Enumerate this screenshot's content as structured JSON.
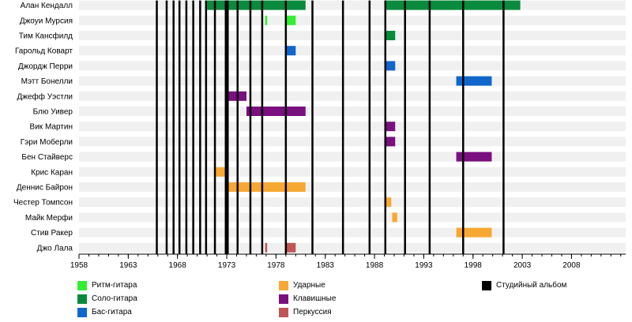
{
  "chart_data": {
    "type": "timeline",
    "x_axis": {
      "min": 1958,
      "max": 2013.5,
      "ticks": [
        1958,
        1963,
        1968,
        1973,
        1978,
        1983,
        1988,
        1993,
        1998,
        2003,
        2008
      ]
    },
    "colors": {
      "rhythm": "#33ee33",
      "lead": "#0a8a3c",
      "bass": "#1166cc",
      "drums": "#f7a833",
      "keys": "#7a0f80",
      "perc": "#bf5555",
      "album": "#000000"
    },
    "members": [
      {
        "name": "Алан Кендалл",
        "periods": [
          {
            "start": 1971.0,
            "end": 1981.0,
            "role": "lead"
          },
          {
            "start": 1989.0,
            "end": 2002.8,
            "role": "lead"
          }
        ]
      },
      {
        "name": "Джоуи Мурсия",
        "periods": [
          {
            "start": 1976.9,
            "end": 1977.1,
            "role": "rhythm"
          },
          {
            "start": 1979.0,
            "end": 1980.0,
            "role": "rhythm"
          }
        ]
      },
      {
        "name": "Тим Кансфилд",
        "periods": [
          {
            "start": 1989.0,
            "end": 1990.1,
            "role": "lead"
          }
        ]
      },
      {
        "name": "Гарольд Коварт",
        "periods": [
          {
            "start": 1979.0,
            "end": 1980.0,
            "role": "bass"
          }
        ]
      },
      {
        "name": "Джордж Перри",
        "periods": [
          {
            "start": 1989.0,
            "end": 1990.1,
            "role": "bass"
          }
        ]
      },
      {
        "name": "Мэтт Бонелли",
        "periods": [
          {
            "start": 1996.3,
            "end": 1999.9,
            "role": "bass"
          }
        ]
      },
      {
        "name": "Джефф Уэстли",
        "periods": [
          {
            "start": 1973.0,
            "end": 1975.0,
            "role": "keys"
          }
        ]
      },
      {
        "name": "Блю Уивер",
        "periods": [
          {
            "start": 1975.0,
            "end": 1981.0,
            "role": "keys"
          }
        ]
      },
      {
        "name": "Вик Мартин",
        "periods": [
          {
            "start": 1989.0,
            "end": 1990.1,
            "role": "keys"
          }
        ]
      },
      {
        "name": "Гэри Моберли",
        "periods": [
          {
            "start": 1989.0,
            "end": 1990.1,
            "role": "keys"
          }
        ]
      },
      {
        "name": "Бен Стайверс",
        "periods": [
          {
            "start": 1996.3,
            "end": 1999.9,
            "role": "keys"
          }
        ]
      },
      {
        "name": "Крис Каран",
        "periods": [
          {
            "start": 1971.9,
            "end": 1973.0,
            "role": "drums"
          }
        ]
      },
      {
        "name": "Деннис Байрон",
        "periods": [
          {
            "start": 1973.0,
            "end": 1981.0,
            "role": "drums"
          }
        ]
      },
      {
        "name": "Честер Томпсон",
        "periods": [
          {
            "start": 1989.0,
            "end": 1989.7,
            "role": "drums"
          }
        ]
      },
      {
        "name": "Майк Мерфи",
        "periods": [
          {
            "start": 1989.8,
            "end": 1990.3,
            "role": "drums"
          }
        ]
      },
      {
        "name": "Стив Ракер",
        "periods": [
          {
            "start": 1996.3,
            "end": 1999.9,
            "role": "drums"
          }
        ]
      },
      {
        "name": "Джо Лала",
        "periods": [
          {
            "start": 1976.9,
            "end": 1977.1,
            "role": "perc"
          },
          {
            "start": 1979.0,
            "end": 1980.0,
            "role": "perc"
          }
        ]
      }
    ],
    "album_releases": [
      1965.9,
      1966.9,
      1967.6,
      1968.2,
      1968.9,
      1969.6,
      1970.3,
      1970.9,
      1971.8,
      1972.9,
      1973.1,
      1974.1,
      1975.4,
      1976.6,
      1979.0,
      1981.7,
      1984.8,
      1987.5,
      1989.1,
      1991.1,
      1993.6,
      1997.0,
      2001.1
    ],
    "legend": [
      {
        "key": "rhythm",
        "label": "Ритм-гитара"
      },
      {
        "key": "lead",
        "label": "Соло-гитара"
      },
      {
        "key": "bass",
        "label": "Бас-гитара"
      },
      {
        "key": "drums",
        "label": "Ударные"
      },
      {
        "key": "keys",
        "label": "Клавишные"
      },
      {
        "key": "perc",
        "label": "Перкуссия"
      },
      {
        "key": "album",
        "label": "Студийный альбом"
      }
    ]
  }
}
